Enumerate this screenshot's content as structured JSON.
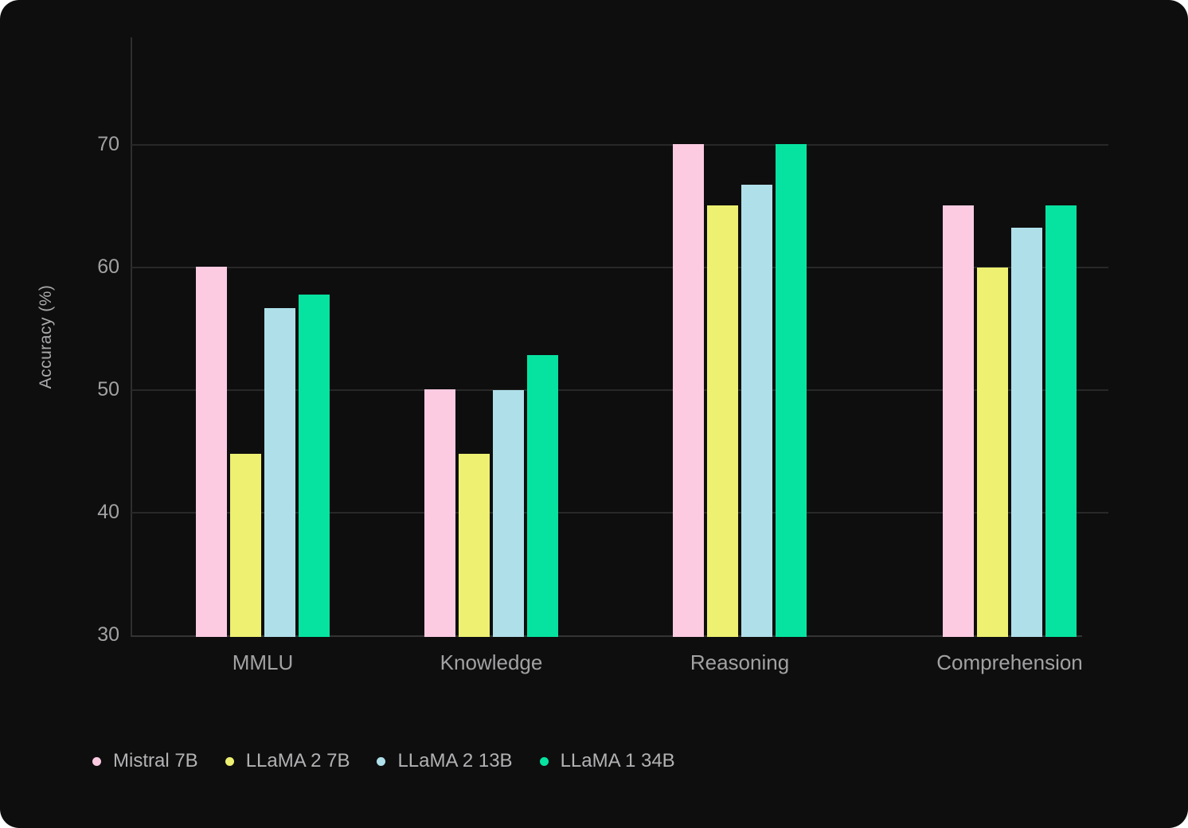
{
  "chart_data": {
    "type": "bar",
    "title": "",
    "xlabel": "",
    "ylabel": "Accuracy (%)",
    "categories": [
      "MMLU",
      "Knowledge",
      "Reasoning",
      "Comprehension"
    ],
    "series": [
      {
        "name": "Mistral 7B",
        "color": "#fccbe2",
        "values": [
          60.1,
          50.1,
          70.1,
          65.1
        ]
      },
      {
        "name": "LLaMA 2 7B",
        "color": "#edf071",
        "values": [
          44.8,
          44.8,
          65.1,
          60.0
        ]
      },
      {
        "name": "LLaMA 2 13B",
        "color": "#afe0ea",
        "values": [
          56.7,
          50.0,
          66.8,
          63.3
        ]
      },
      {
        "name": "LLaMA 1 34B",
        "color": "#06e3a0",
        "values": [
          57.8,
          52.9,
          70.1,
          65.1
        ]
      }
    ],
    "y_ticks": [
      30,
      40,
      50,
      60,
      70
    ],
    "ylim": [
      30,
      78.8
    ],
    "grid": "horizontal",
    "legend_position": "bottom-left",
    "colors": {
      "background": "#0e0e0e",
      "gridline": "#282828",
      "axis_line": "#343434",
      "tick_text": "#a2a2a4",
      "legend_text": "#b2b2b5"
    }
  }
}
